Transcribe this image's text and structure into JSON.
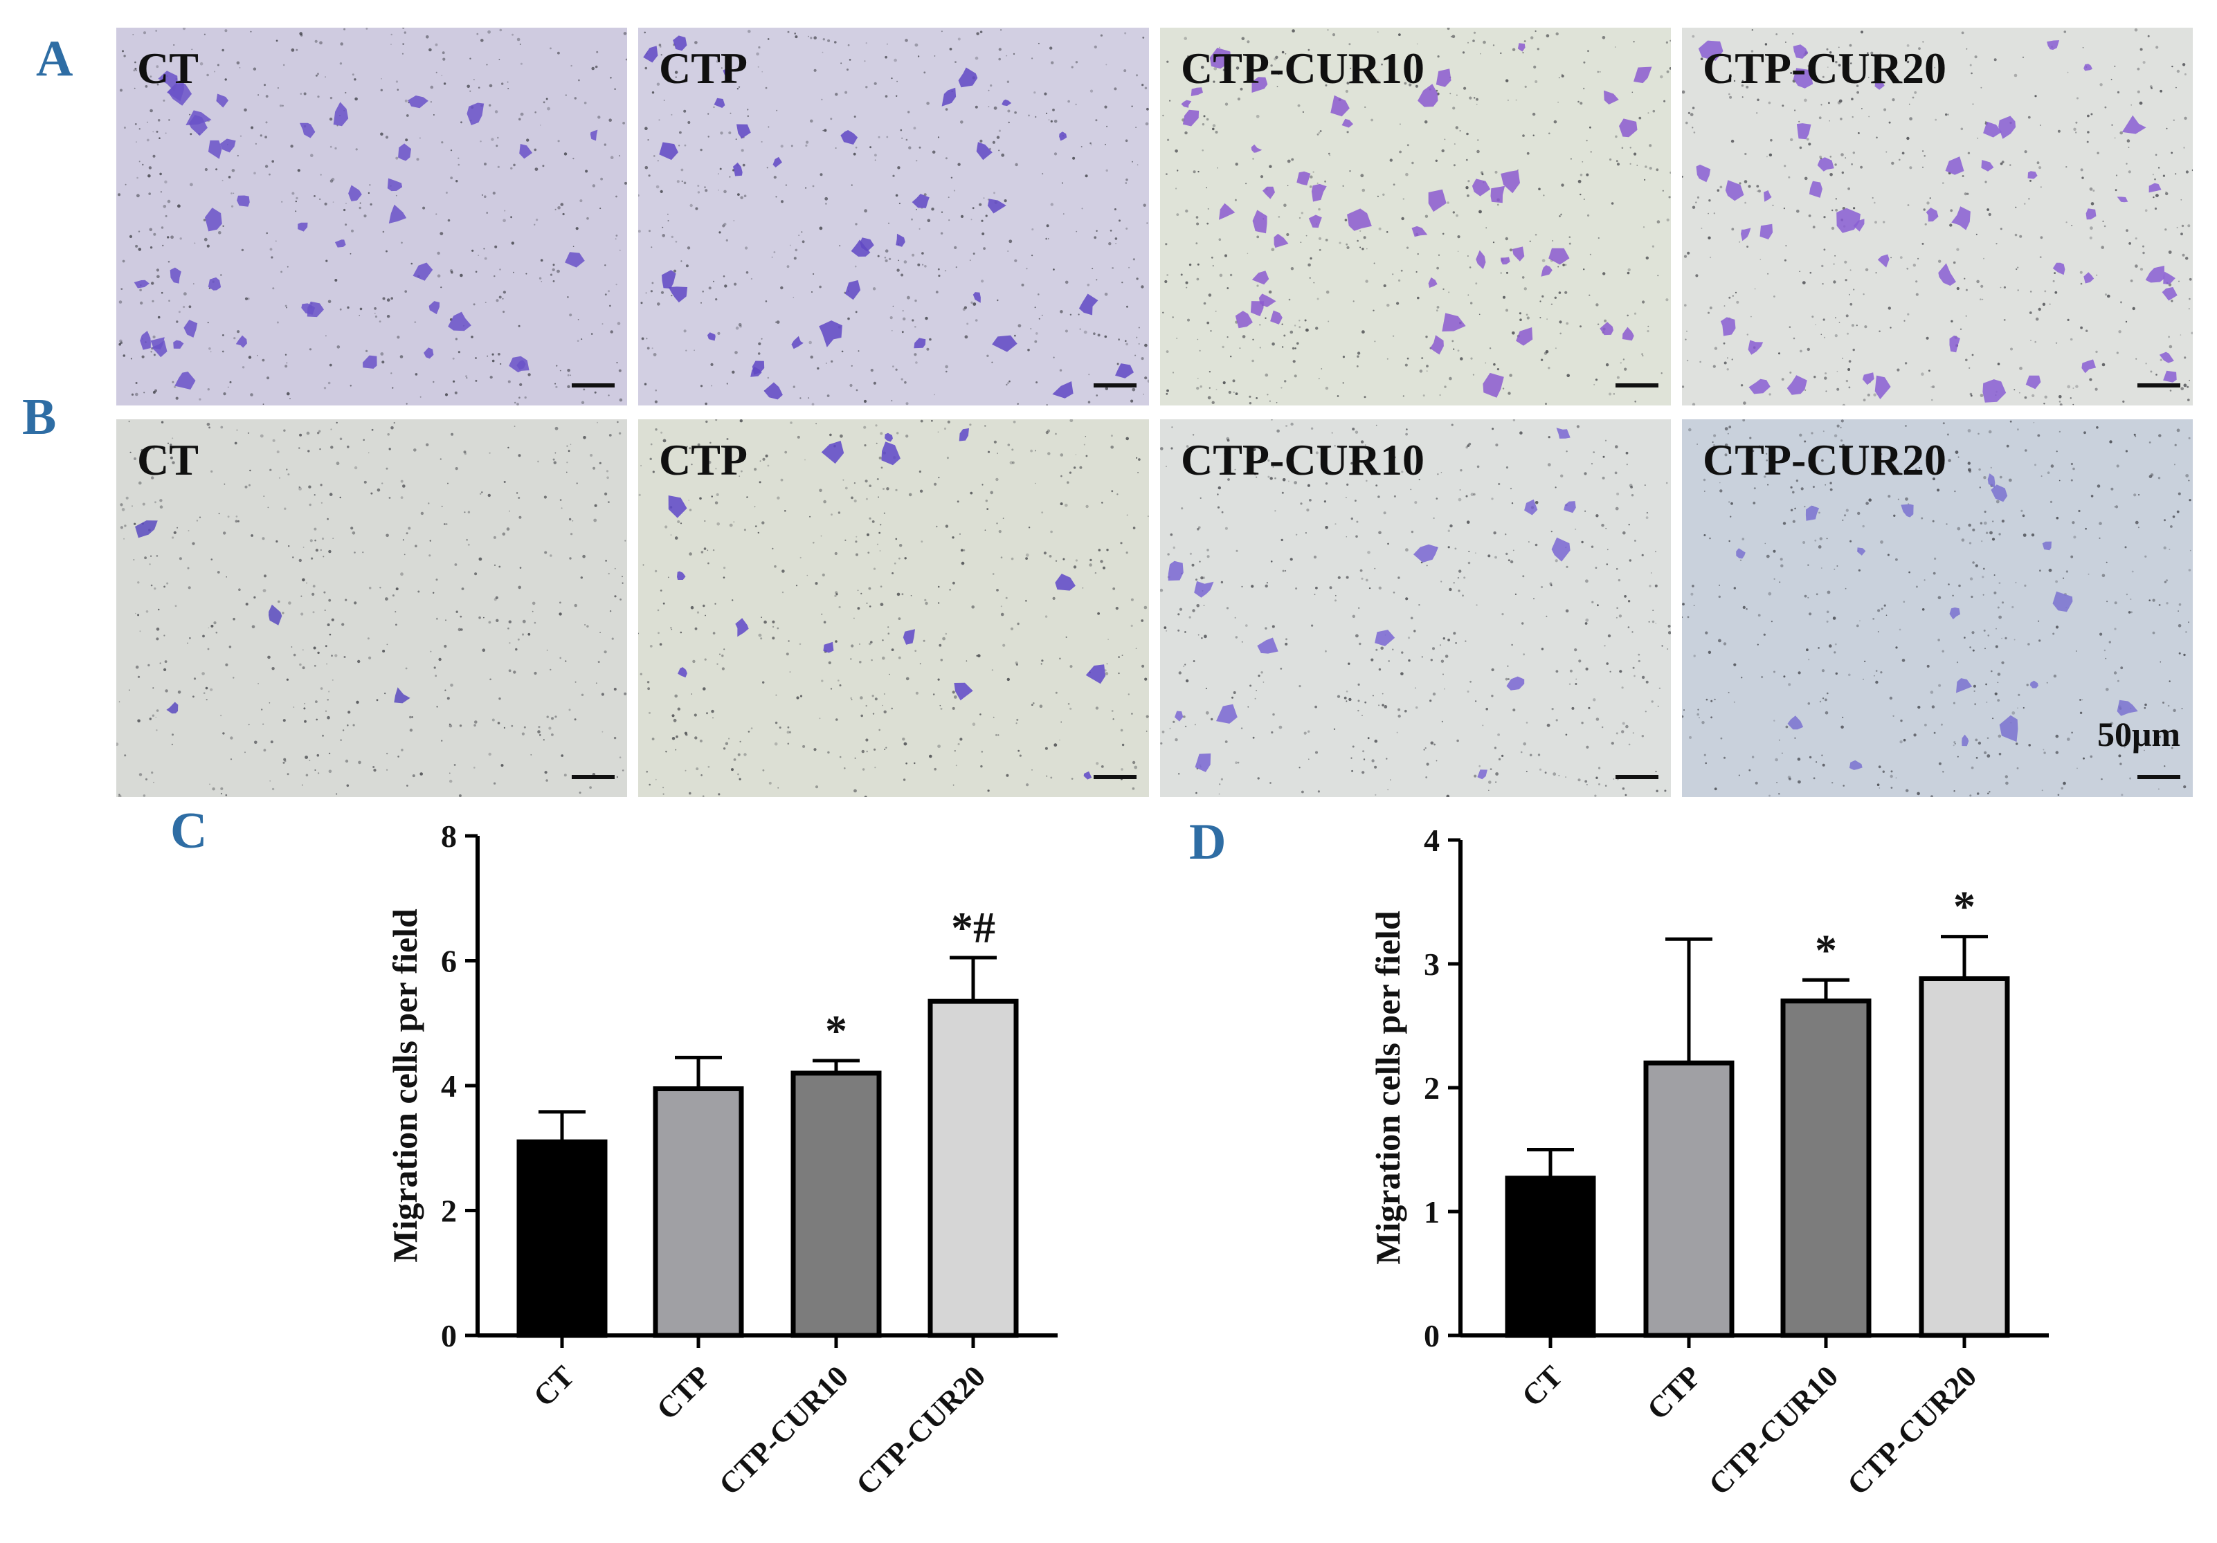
{
  "panels": {
    "a": {
      "letter": "A",
      "images": [
        {
          "label": "CT",
          "tint": "#cfcbe0",
          "cells": 42,
          "cell_color": "#6a52c8"
        },
        {
          "label": "CTP",
          "tint": "#d2cfe2",
          "cells": 34,
          "cell_color": "#6048c4"
        },
        {
          "label": "CTP-CUR10",
          "tint": "#dfe3d8",
          "cells": 44,
          "cell_color": "#8c5ad0"
        },
        {
          "label": "CTP-CUR20",
          "tint": "#dfe1de",
          "cells": 46,
          "cell_color": "#8a5ed4"
        }
      ]
    },
    "b": {
      "letter": "B",
      "images": [
        {
          "label": "CT",
          "tint": "#d8dad6",
          "cells": 4,
          "cell_color": "#5a4ac0"
        },
        {
          "label": "CTP",
          "tint": "#dcdfd4",
          "cells": 14,
          "cell_color": "#5e48c8"
        },
        {
          "label": "CTP-CUR10",
          "tint": "#dde0de",
          "cells": 14,
          "cell_color": "#7a66d4"
        },
        {
          "label": "CTP-CUR20",
          "tint": "#c9d1dc",
          "cells": 16,
          "cell_color": "#7a72d0"
        }
      ],
      "scale_text": "50μm"
    },
    "c": {
      "letter": "C"
    },
    "d": {
      "letter": "D"
    }
  },
  "chart_data": [
    {
      "type": "bar",
      "panel": "C",
      "categories": [
        "CT",
        "CTP",
        "CTP-CUR10",
        "CTP-CUR20"
      ],
      "values": [
        3.1,
        3.95,
        4.2,
        5.35
      ],
      "errors": [
        0.48,
        0.5,
        0.2,
        0.7
      ],
      "annotations": [
        "",
        "",
        "*",
        "*#"
      ],
      "ylabel": "Migration cells per field",
      "ylim": [
        0,
        8
      ],
      "yticks": [
        0,
        2,
        4,
        6,
        8
      ],
      "bar_colors": [
        "#000000",
        "#a0a0a4",
        "#7c7c7c",
        "#d6d6d6"
      ]
    },
    {
      "type": "bar",
      "panel": "D",
      "categories": [
        "CT",
        "CTP",
        "CTP-CUR10",
        "CTP-CUR20"
      ],
      "values": [
        1.27,
        2.2,
        2.7,
        2.88
      ],
      "errors": [
        0.23,
        1.0,
        0.17,
        0.34
      ],
      "annotations": [
        "",
        "",
        "*",
        "*"
      ],
      "ylabel": "Migration cells per field",
      "ylim": [
        0,
        4
      ],
      "yticks": [
        0,
        1,
        2,
        3,
        4
      ],
      "bar_colors": [
        "#000000",
        "#a0a0a4",
        "#7c7c7c",
        "#d6d6d6"
      ]
    }
  ]
}
